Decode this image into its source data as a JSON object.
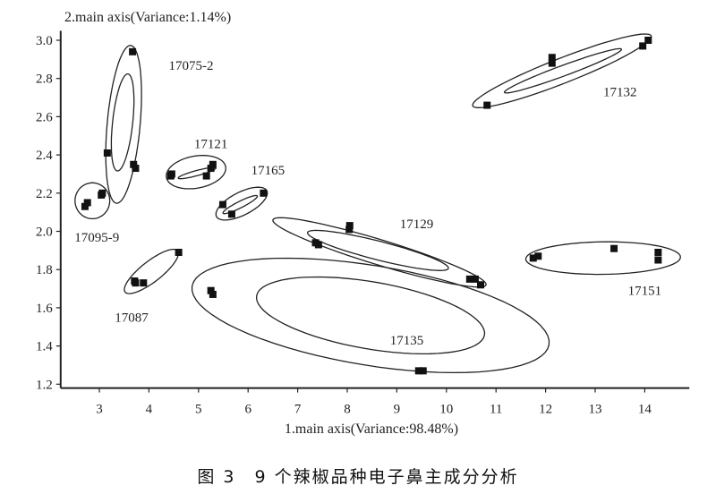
{
  "caption": "图 3　9 个辣椒品种电子鼻主成分分析",
  "chart_data": {
    "type": "scatter",
    "title": "",
    "xlabel": "1.main axis(Variance:98.48%)",
    "ylabel": "2.main axis(Variance:1.14%)",
    "xlim": [
      2.22,
      14.9
    ],
    "ylim": [
      1.18,
      3.05
    ],
    "xticks": [
      3,
      4,
      5,
      6,
      7,
      8,
      9,
      10,
      11,
      12,
      13,
      14
    ],
    "yticks": [
      "1.2",
      "1.4",
      "1.6",
      "1.8",
      "2.0",
      "2.2",
      "2.4",
      "2.6",
      "2.8",
      "3.0"
    ],
    "grid": false,
    "marker": "square",
    "color": "#111111",
    "series": [
      {
        "name": "17075-2",
        "label_at": [
          4.85,
          2.87
        ],
        "points": [
          [
            3.67,
            2.94
          ],
          [
            3.16,
            2.41
          ],
          [
            3.69,
            2.35
          ],
          [
            3.73,
            2.33
          ]
        ],
        "ellipses": [
          {
            "center": [
              3.49,
              2.56
            ],
            "a": [
              0.145,
              0.413
            ],
            "b": [
              0.33,
              -0.01
            ]
          },
          {
            "center": [
              3.47,
              2.57
            ],
            "a": [
              0.11,
              0.254
            ],
            "b": [
              0.2,
              -0.01
            ]
          }
        ]
      },
      {
        "name": "17095-9",
        "label_at": [
          2.95,
          1.97
        ],
        "points": [
          [
            2.71,
            2.13
          ],
          [
            2.76,
            2.15
          ],
          [
            3.04,
            2.19
          ],
          [
            3.06,
            2.2
          ]
        ],
        "ellipses": [
          {
            "center": [
              2.86,
              2.16
            ],
            "a": [
              0.35,
              0
            ],
            "b": [
              0,
              0.094
            ]
          }
        ]
      },
      {
        "name": "17121",
        "label_at": [
          5.25,
          2.46
        ],
        "points": [
          [
            4.44,
            2.29
          ],
          [
            4.46,
            2.3
          ],
          [
            5.16,
            2.29
          ],
          [
            5.25,
            2.33
          ],
          [
            5.29,
            2.35
          ]
        ],
        "ellipses": [
          {
            "center": [
              4.95,
              2.31
            ],
            "a": [
              0.6,
              0.02
            ],
            "b": [
              0,
              0.085
            ]
          },
          {
            "center": [
              4.97,
              2.305
            ],
            "a": [
              0.38,
              0.026
            ],
            "b": [
              0,
              0.014
            ]
          }
        ]
      },
      {
        "name": "17165",
        "label_at": [
          6.4,
          2.32
        ],
        "points": [
          [
            5.49,
            2.14
          ],
          [
            5.67,
            2.09
          ],
          [
            6.31,
            2.2
          ]
        ],
        "ellipses": [
          {
            "center": [
              5.87,
              2.145
            ],
            "a": [
              0.51,
              0.066
            ],
            "b": [
              -0.09,
              0.055
            ]
          },
          {
            "center": [
              5.84,
              2.14
            ],
            "a": [
              0.345,
              0.045
            ],
            "b": [
              -0.03,
              0.015
            ]
          }
        ]
      },
      {
        "name": "17087",
        "label_at": [
          3.65,
          1.55
        ],
        "points": [
          [
            3.71,
            1.74
          ],
          [
            3.73,
            1.73
          ],
          [
            3.89,
            1.73
          ],
          [
            4.6,
            1.89
          ]
        ],
        "ellipses": [
          {
            "center": [
              4.05,
              1.79
            ],
            "a": [
              0.53,
              0.108
            ],
            "b": [
              0.13,
              -0.042
            ]
          }
        ]
      },
      {
        "name": "17135",
        "label_at": [
          9.2,
          1.43
        ],
        "points": [
          [
            5.25,
            1.69
          ],
          [
            5.29,
            1.67
          ],
          [
            9.44,
            1.27
          ],
          [
            9.53,
            1.27
          ]
        ],
        "ellipses": [
          {
            "center": [
              8.47,
              1.56
            ],
            "a": [
              3.6,
              -0.13
            ],
            "b": [
              -0.15,
              0.27
            ]
          },
          {
            "center": [
              8.47,
              1.56
            ],
            "a": [
              2.3,
              -0.09
            ],
            "b": [
              -0.05,
              0.18
            ]
          }
        ]
      },
      {
        "name": "17129",
        "label_at": [
          9.4,
          2.04
        ],
        "points": [
          [
            7.36,
            1.94
          ],
          [
            7.42,
            1.93
          ],
          [
            8.05,
            2.03
          ],
          [
            8.04,
            2.01
          ],
          [
            10.47,
            1.75
          ],
          [
            10.58,
            1.75
          ],
          [
            10.69,
            1.72
          ]
        ],
        "ellipses": [
          {
            "center": [
              8.65,
              1.89
            ],
            "a": [
              2.15,
              -0.17
            ],
            "b": [
              -0.07,
              -0.063
            ]
          },
          {
            "center": [
              8.62,
              1.9
            ],
            "a": [
              1.42,
              -0.094
            ],
            "b": [
              -0.05,
              -0.047
            ]
          }
        ]
      },
      {
        "name": "17132",
        "label_at": [
          13.5,
          2.73
        ],
        "points": [
          [
            10.82,
            2.66
          ],
          [
            12.13,
            2.91
          ],
          [
            12.13,
            2.88
          ],
          [
            13.96,
            2.97
          ],
          [
            14.07,
            3.0
          ]
        ],
        "ellipses": [
          {
            "center": [
              12.33,
              2.84
            ],
            "a": [
              1.8,
              0.183
            ],
            "b": [
              0.09,
              -0.061
            ]
          },
          {
            "center": [
              12.35,
              2.84
            ],
            "a": [
              1.18,
              0.113
            ],
            "b": [
              0.036,
              -0.026
            ]
          }
        ]
      },
      {
        "name": "17151",
        "label_at": [
          14.0,
          1.69
        ],
        "points": [
          [
            11.75,
            1.86
          ],
          [
            11.85,
            1.87
          ],
          [
            13.38,
            1.91
          ],
          [
            14.27,
            1.89
          ],
          [
            14.27,
            1.85
          ]
        ],
        "ellipses": [
          {
            "center": [
              13.16,
              1.86
            ],
            "a": [
              1.56,
              0.005
            ],
            "b": [
              0,
              0.085
            ]
          }
        ]
      }
    ]
  }
}
